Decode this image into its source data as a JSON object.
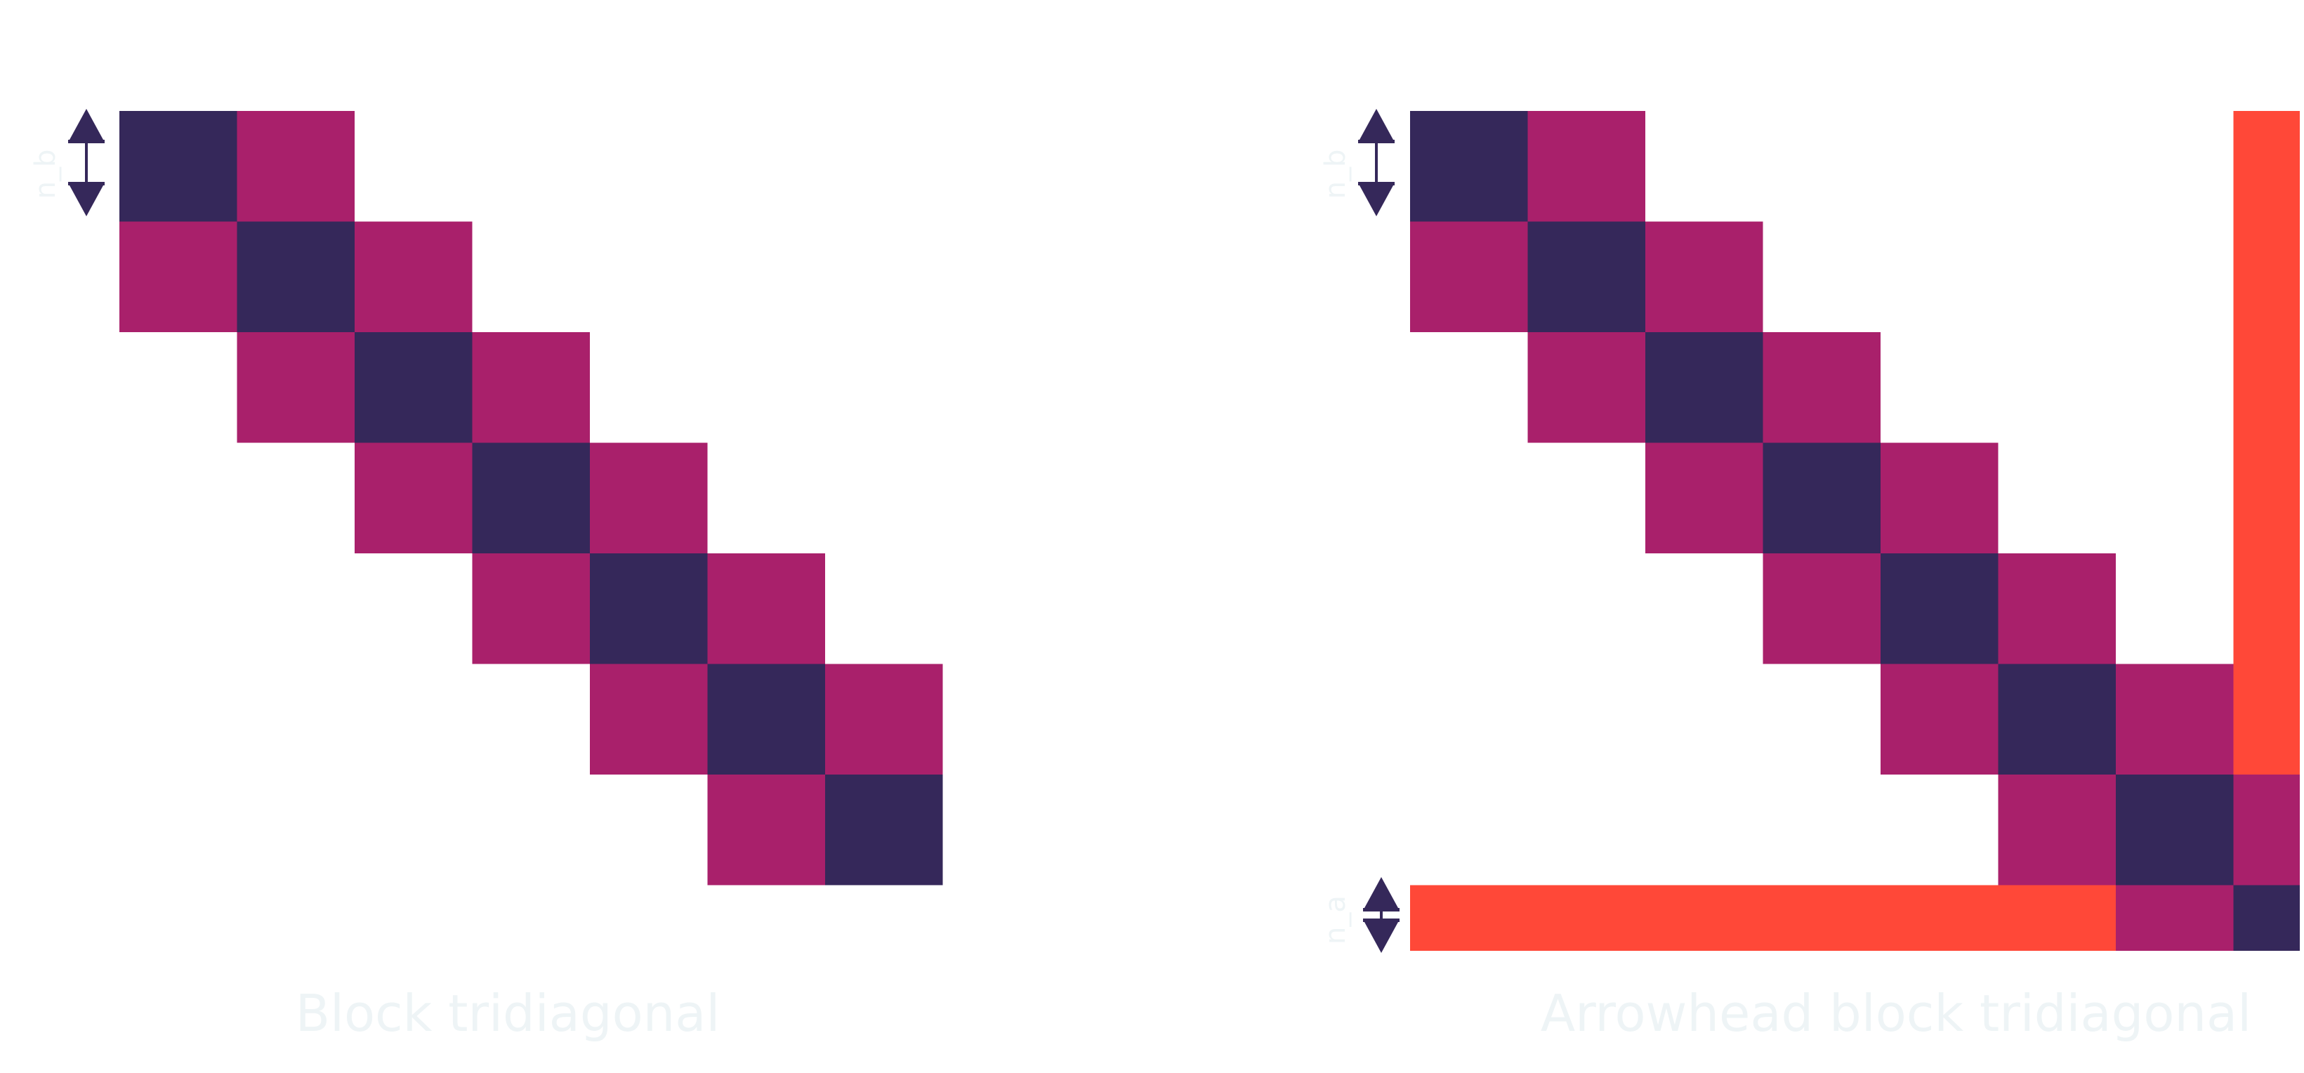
{
  "colors": {
    "diagonal": "#35285a",
    "offdiagonal": "#a9206b",
    "border": "#ff4838",
    "arrow": "#35285a",
    "text": "#eef4f6",
    "background": "#ffffff"
  },
  "diagrams": [
    {
      "caption": "Block tridiagonal",
      "block_size_label": "n_b",
      "n_blocks": 7,
      "has_arrowhead": false
    },
    {
      "caption": "Arrowhead block tridiagonal",
      "block_size_label": "n_b",
      "arrow_size_label": "n_a",
      "n_blocks": 7,
      "has_arrowhead": true
    }
  ]
}
